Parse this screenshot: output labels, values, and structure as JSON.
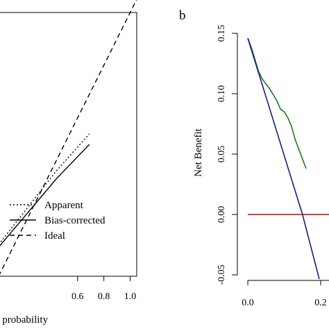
{
  "chart_data": [
    {
      "type": "line",
      "panel_label": "",
      "xlabel": "d probability",
      "ylabel": "",
      "xlim": [
        0.0,
        1.05
      ],
      "ylim": [
        0.0,
        1.0
      ],
      "x_ticks": [
        {
          "value": 0.6,
          "label": "0.6"
        },
        {
          "value": 0.8,
          "label": "0.8"
        },
        {
          "value": 1.0,
          "label": "1.0"
        }
      ],
      "legend_position": "bottom-left",
      "grid": false,
      "series": [
        {
          "name": "Apparent",
          "style": "dotted",
          "x": [
            0.0,
            0.44,
            0.69
          ],
          "y": [
            0.12,
            0.4,
            0.54
          ]
        },
        {
          "name": "Bias-corrected",
          "style": "solid",
          "x": [
            0.0,
            0.44,
            0.69
          ],
          "y": [
            0.11,
            0.37,
            0.5
          ]
        },
        {
          "name": "Ideal",
          "style": "dashed",
          "x": [
            0.0,
            1.05
          ],
          "y": [
            0.0,
            1.05
          ]
        }
      ]
    },
    {
      "type": "line",
      "panel_label": "b",
      "xlabel": "",
      "ylabel": "Net Benefit",
      "xlim": [
        0.0,
        0.3
      ],
      "ylim": [
        -0.05,
        0.15
      ],
      "x_ticks": [
        {
          "value": 0.0,
          "label": "0.0"
        },
        {
          "value": 0.2,
          "label": "0.2"
        }
      ],
      "y_ticks": [
        {
          "value": -0.05,
          "label": "-0.05"
        },
        {
          "value": 0.0,
          "label": "0.00"
        },
        {
          "value": 0.05,
          "label": "0.05"
        },
        {
          "value": 0.1,
          "label": "0.10"
        },
        {
          "value": 0.15,
          "label": "0.15"
        }
      ],
      "grid": false,
      "series": [
        {
          "color": "#1a7a1a",
          "x": [
            0.0,
            0.01,
            0.02,
            0.03,
            0.04,
            0.05,
            0.06,
            0.07,
            0.08,
            0.09,
            0.1,
            0.11,
            0.12,
            0.13,
            0.14,
            0.15,
            0.16
          ],
          "y": [
            0.146,
            0.138,
            0.128,
            0.118,
            0.112,
            0.108,
            0.104,
            0.099,
            0.094,
            0.087,
            0.085,
            0.08,
            0.073,
            0.062,
            0.054,
            0.046,
            0.038
          ]
        },
        {
          "color": "#1a1a80",
          "x": [
            0.0,
            0.15,
            0.2
          ],
          "y": [
            0.146,
            0.0,
            -0.058
          ]
        },
        {
          "color": "#8b1a1a",
          "x": [
            0.0,
            0.3
          ],
          "y": [
            0.0,
            0.0
          ]
        }
      ]
    }
  ]
}
